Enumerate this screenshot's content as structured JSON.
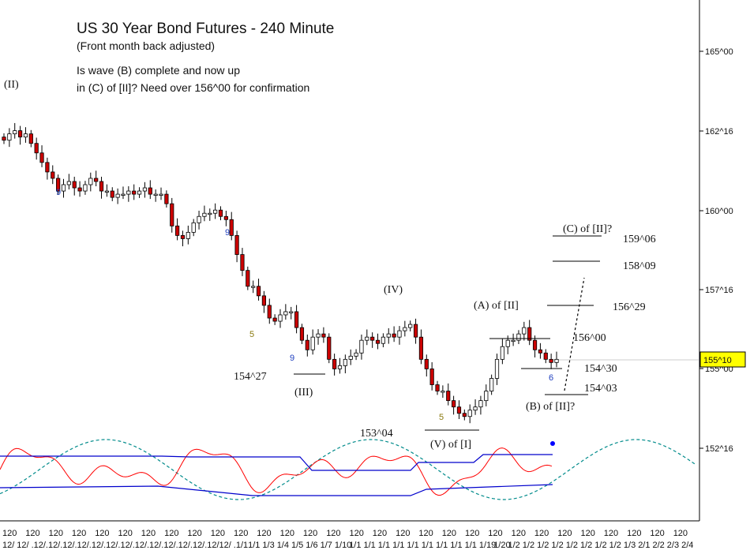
{
  "chart_data": {
    "type": "candlestick",
    "title": "US 30 Year Bond Futures - 240 Minute",
    "subtitle": "(Front month back adjusted)",
    "note_lines": [
      "Is wave (B) complete and now up",
      "in (C) of [II]? Need over 156^00 for confirmation"
    ],
    "y_axis": {
      "ticks": [
        "165^00",
        "162^16",
        "160^00",
        "157^16",
        "155^00",
        "152^16"
      ],
      "tick_values": [
        165.0,
        162.5,
        160.0,
        157.5,
        155.0,
        152.5
      ],
      "range": [
        150.8,
        166.7
      ]
    },
    "current_price": {
      "label": "155^10",
      "value": 155.31,
      "color": "#ffff00"
    },
    "x_axis": {
      "top_labels": [
        "120",
        "120",
        "120",
        "120",
        "120",
        "120",
        "120",
        "120",
        "120",
        "120",
        "120",
        "120",
        "120",
        "120",
        "120",
        "120",
        "120",
        "120",
        "120",
        "120",
        "120",
        "120",
        "120",
        "120",
        "120",
        "120",
        "120",
        "120",
        "120",
        "120",
        "120",
        "120",
        "120",
        "120",
        "120",
        "120",
        "120",
        "120",
        "120",
        "120",
        "120",
        "120",
        "120",
        "120",
        "120",
        "120",
        "120",
        "120",
        "120",
        "120",
        "120",
        "120",
        "120",
        "120",
        "120",
        "120",
        "120",
        "120",
        "120",
        "12"
      ],
      "bottom_labels": [
        "12/",
        "12/",
        ".12/",
        ".12/",
        ".12/",
        ".12/",
        ".12/",
        ".12/",
        ".12/",
        ".12/",
        ".12/",
        ".12/",
        ".12/",
        ".12/",
        ".12/",
        "12/",
        ".1/1",
        "1/1",
        "1/3",
        "1/4",
        "1/5",
        "1/6",
        "1/7",
        "1/10",
        "1/1",
        "1/1",
        "1/1",
        "1/1",
        "1/1",
        "1/1",
        "1/1",
        "1/1",
        "1/1",
        "1/19",
        "1/20",
        "1/2",
        "1/2",
        "1/2",
        "1/2",
        "1/2",
        "1/2",
        "1/2",
        "1/2",
        "1/3",
        "2/1",
        "2/2",
        "2/3",
        "2/4"
      ]
    },
    "price_levels": [
      {
        "label": "159^06",
        "value": 159.19
      },
      {
        "label": "158^09",
        "value": 158.28
      },
      {
        "label": "156^29",
        "value": 156.91
      },
      {
        "label": "156^00",
        "value": 156.0
      },
      {
        "label": "154^30",
        "value": 154.94
      },
      {
        "label": "154^03",
        "value": 154.09
      },
      {
        "label": "154^27",
        "value": 154.84
      },
      {
        "label": "153^04",
        "value": 153.12
      }
    ],
    "wave_labels": [
      "(II)",
      "(III)",
      "(IV)",
      "(V) of [I]",
      "(A) of [II]",
      "(B) of [II]?",
      "(C) of [II]?"
    ],
    "count_labels": [
      {
        "text": "9",
        "color": "#1f3fbf"
      },
      {
        "text": "9",
        "color": "#1f3fbf"
      },
      {
        "text": "5",
        "color": "#8a7a10"
      },
      {
        "text": "9",
        "color": "#1f3fbf"
      },
      {
        "text": "5",
        "color": "#8a7a10"
      },
      {
        "text": "6",
        "color": "#1f3fbf"
      }
    ],
    "series": [
      {
        "name": "price",
        "kind": "candles",
        "close": [
          162.2,
          162.4,
          162.5,
          162.3,
          162.4,
          162.1,
          161.8,
          161.5,
          161.2,
          161.0,
          160.6,
          160.8,
          160.9,
          160.7,
          160.6,
          160.8,
          161.0,
          160.9,
          160.6,
          160.6,
          160.4,
          160.5,
          160.5,
          160.6,
          160.5,
          160.6,
          160.7,
          160.5,
          160.5,
          160.5,
          160.2,
          159.5,
          159.2,
          159.1,
          159.3,
          159.6,
          159.8,
          159.9,
          159.9,
          160.0,
          159.8,
          159.7,
          159.2,
          158.6,
          158.1,
          157.6,
          157.6,
          157.3,
          157.0,
          156.6,
          156.5,
          156.7,
          156.8,
          156.8,
          156.3,
          155.9,
          155.6,
          156.0,
          156.1,
          156.0,
          155.3,
          155.0,
          155.1,
          155.3,
          155.4,
          155.5,
          155.9,
          156.0,
          155.9,
          155.8,
          156.0,
          156.1,
          156.0,
          156.2,
          156.3,
          156.4,
          156.0,
          155.3,
          155.0,
          154.5,
          154.3,
          154.3,
          154.0,
          153.8,
          153.6,
          153.5,
          153.7,
          153.8,
          154.0,
          154.3,
          154.7,
          155.3,
          155.7,
          155.9,
          155.9,
          156.1,
          156.3,
          155.9,
          155.6,
          155.5,
          155.3,
          155.2,
          155.3
        ]
      },
      {
        "name": "cycle",
        "kind": "oscillator",
        "color": "#008b8b",
        "style": "dashed"
      },
      {
        "name": "fast",
        "kind": "oscillator",
        "color": "#ff0000"
      },
      {
        "name": "upper band",
        "kind": "band",
        "color": "#0000cc"
      },
      {
        "name": "lower band",
        "kind": "band",
        "color": "#0000cc"
      }
    ],
    "grid": false,
    "legend": "none",
    "colors": {
      "up": "#ffffff",
      "down": "#cc0000",
      "outline": "#000000",
      "axis": "#000000"
    }
  }
}
